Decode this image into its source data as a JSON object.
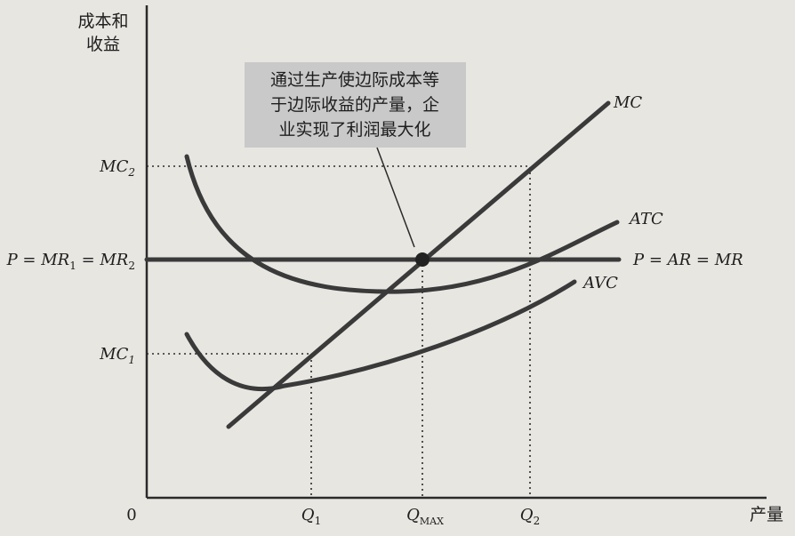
{
  "diagram": {
    "y_axis_label_line1": "成本和",
    "y_axis_label_line2": "收益",
    "x_axis_label": "产量",
    "origin": "0",
    "y_ticks": {
      "mc2": {
        "main": "MC",
        "sub": "2"
      },
      "price": {
        "p": "P",
        "eq1": " = ",
        "mr": "MR",
        "sub1": "1",
        "eq2": " = ",
        "mr2": "MR",
        "sub2": "2"
      },
      "mc1": {
        "main": "MC",
        "sub": "1"
      }
    },
    "x_ticks": {
      "q1": {
        "main": "Q",
        "sub": "1"
      },
      "qmax": {
        "main": "Q",
        "sub": "MAX"
      },
      "q2": {
        "main": "Q",
        "sub": "2"
      }
    },
    "curves": {
      "mc": "MC",
      "atc": "ATC",
      "avc": "AVC",
      "price_line": "P = AR = MR"
    },
    "annotation": {
      "line1": "通过生产使边际成本等",
      "line2": "于边际收益的产量，企",
      "line3": "业实现了利润最大化"
    },
    "colors": {
      "background": "#e8e6e1",
      "curve": "#3a3a3a",
      "callout_box": "#c9c9c9"
    }
  }
}
